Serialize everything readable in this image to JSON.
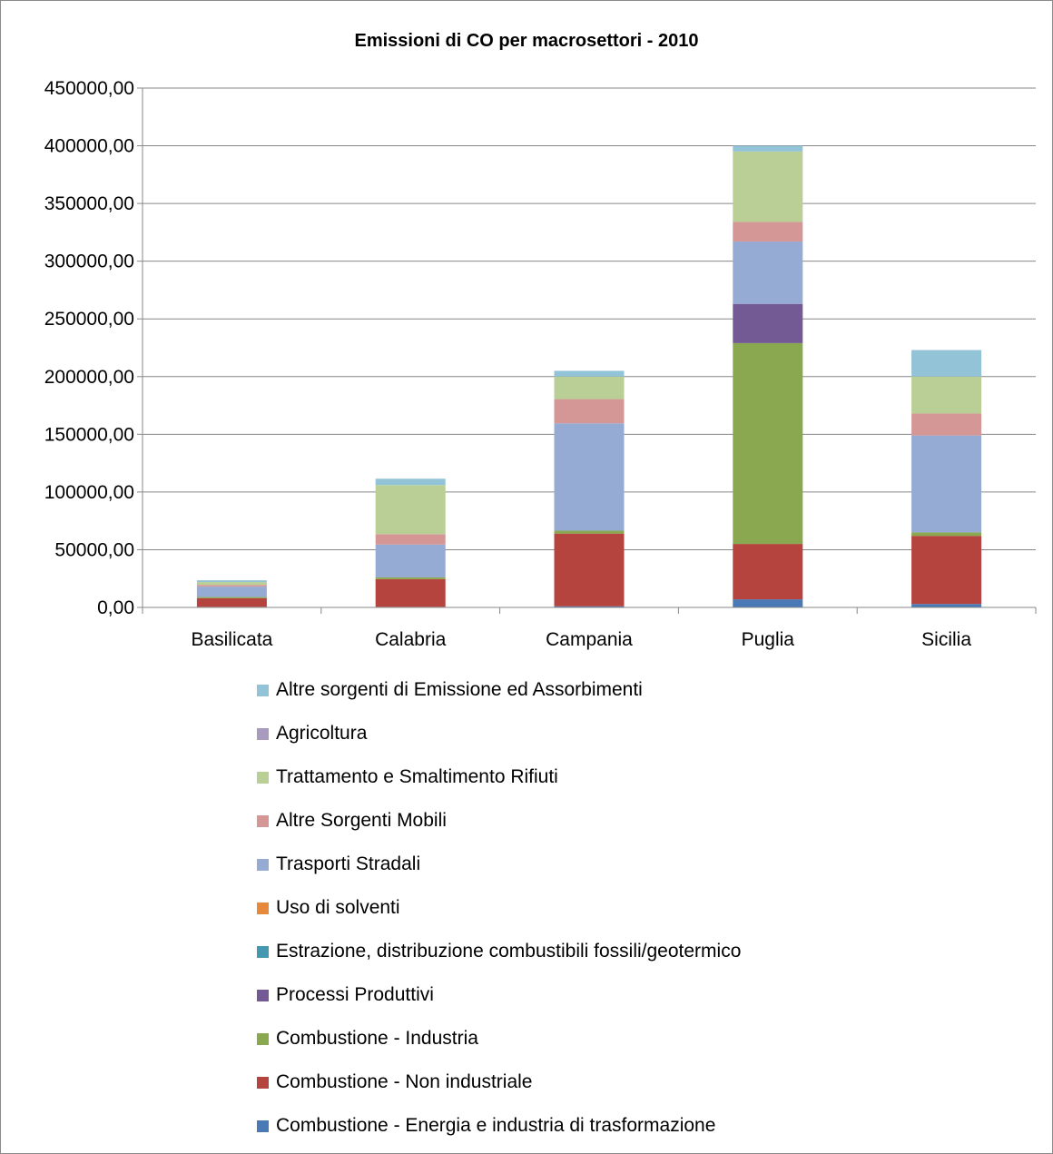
{
  "chart_data": {
    "type": "bar",
    "stacked": true,
    "title": "Emissioni di CO per macrosettori - 2010",
    "xlabel": "",
    "ylabel": "",
    "ylim": [
      0,
      450000
    ],
    "ytick_step": 50000,
    "ytick_labels": [
      "0,00",
      "50000,00",
      "100000,00",
      "150000,00",
      "200000,00",
      "250000,00",
      "300000,00",
      "350000,00",
      "400000,00",
      "450000,00"
    ],
    "grid": true,
    "legend_position": "bottom",
    "categories": [
      "Basilicata",
      "Calabria",
      "Campania",
      "Puglia",
      "Sicilia"
    ],
    "series": [
      {
        "name": "Combustione - Energia e industria di trasformazione",
        "color": "#4a7ab5",
        "values": [
          500,
          500,
          1000,
          7000,
          3000
        ]
      },
      {
        "name": "Combustione - Non industriale",
        "color": "#b5443f",
        "values": [
          7500,
          24000,
          63000,
          48000,
          59000
        ]
      },
      {
        "name": "Combustione - Industria",
        "color": "#8aa84f",
        "values": [
          1000,
          1500,
          2500,
          174000,
          3000
        ]
      },
      {
        "name": "Processi Produttivi",
        "color": "#735a95",
        "values": [
          0,
          0,
          0,
          34000,
          0
        ]
      },
      {
        "name": "Estrazione, distribuzione combustibili fossili/geotermico",
        "color": "#4499b0",
        "values": [
          0,
          0,
          0,
          0,
          0
        ]
      },
      {
        "name": "Uso di solventi",
        "color": "#e6893b",
        "values": [
          0,
          0,
          0,
          0,
          0
        ]
      },
      {
        "name": "Trasporti Stradali",
        "color": "#95abd3",
        "values": [
          9000,
          28500,
          93000,
          54000,
          84000
        ]
      },
      {
        "name": "Altre Sorgenti Mobili",
        "color": "#d59795",
        "values": [
          1500,
          9000,
          21000,
          17000,
          19000
        ]
      },
      {
        "name": "Trattamento e Smaltimento Rifiuti",
        "color": "#b9cf96",
        "values": [
          2500,
          42500,
          19500,
          61000,
          32000
        ]
      },
      {
        "name": "Agricoltura",
        "color": "#a99bbd",
        "values": [
          0,
          0,
          0,
          0,
          0
        ]
      },
      {
        "name": "Altre sorgenti di Emissione ed Assorbimenti",
        "color": "#93c3d6",
        "values": [
          1500,
          5500,
          5000,
          5000,
          23000
        ]
      }
    ]
  }
}
